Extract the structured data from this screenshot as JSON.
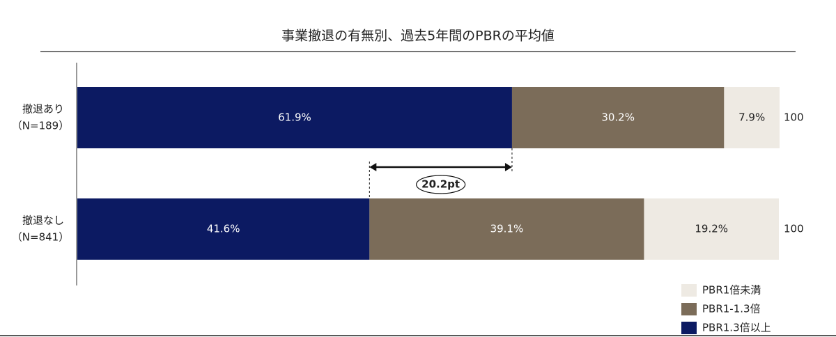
{
  "chart_data": {
    "type": "stacked-barh",
    "title": "事業撤退の有無別、過去5年間のPBRの平均値",
    "categories": [
      "撤退あり",
      "撤退なし"
    ],
    "sample_sizes": [
      "（N=189）",
      "（N=841）"
    ],
    "series": [
      {
        "name": "PBR1.3倍以上",
        "color": "#0c1a62",
        "values": [
          61.9,
          41.6
        ],
        "value_labels": [
          "61.9%",
          "41.6%"
        ],
        "label_color": "#ffffff"
      },
      {
        "name": "PBR1-1.3倍",
        "color": "#7b6c59",
        "values": [
          30.2,
          39.1
        ],
        "value_labels": [
          "30.2%",
          "39.1%"
        ],
        "label_color": "#ffffff"
      },
      {
        "name": "PBR1倍未満",
        "color": "#eeeae3",
        "values": [
          7.9,
          19.2
        ],
        "value_labels": [
          "7.9%",
          "19.2%"
        ],
        "label_color": "#222222"
      }
    ],
    "totals": [
      100,
      100
    ],
    "annotation": "20.2pt",
    "xlim": [
      0,
      100
    ],
    "legend": "bottom-right"
  }
}
